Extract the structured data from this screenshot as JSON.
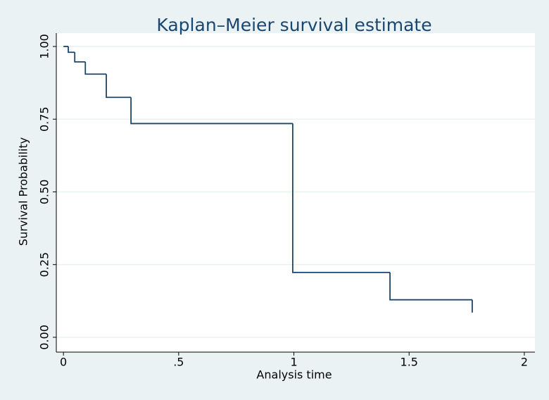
{
  "chart_data": {
    "type": "step",
    "title": "Kaplan–Meier survival estimate",
    "x_label": "Analysis time",
    "y_label": "Survival Probability",
    "x": [
      0,
      0.021,
      0.049,
      0.095,
      0.186,
      0.293,
      0.995,
      1.417,
      1.774
    ],
    "y": [
      1.0,
      0.98,
      0.947,
      0.905,
      0.825,
      0.735,
      0.223,
      0.129,
      0.085
    ],
    "color": "#1a476f",
    "xlim": [
      -0.031,
      2.046
    ],
    "ylim": [
      -0.051,
      1.046
    ],
    "xticks": [
      0,
      {
        "value": 0.5,
        "label": ".5"
      },
      1,
      1.5,
      2
    ],
    "yticks": [
      {
        "value": 0,
        "label": "0.00"
      },
      {
        "value": 0.25,
        "label": "0.25"
      },
      {
        "value": 0.5,
        "label": "0.50"
      },
      {
        "value": 0.75,
        "label": "0.75"
      },
      {
        "value": 1,
        "label": "1.00"
      }
    ],
    "grid": true
  }
}
